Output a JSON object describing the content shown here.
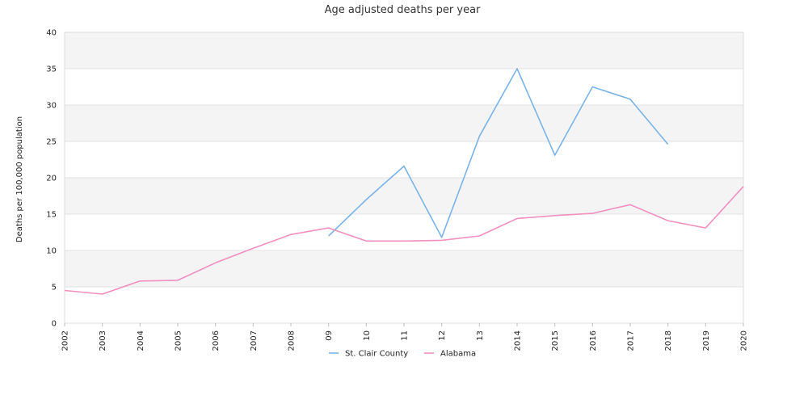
{
  "chart_data": {
    "type": "line",
    "title": "Age adjusted deaths per year",
    "ylabel": "Deaths per 100,000 population",
    "xlabel": "",
    "ylim": [
      0,
      40
    ],
    "yticks": [
      0,
      5,
      10,
      15,
      20,
      25,
      30,
      35,
      40
    ],
    "grid": true,
    "legend_position": "bottom-center",
    "categories": [
      "2002",
      "2003",
      "2004",
      "2005",
      "2006",
      "2007",
      "2008",
      "09",
      "10",
      "11",
      "12",
      "13",
      "2014",
      "2015",
      "2016",
      "2017",
      "2018",
      "2019",
      "2020"
    ],
    "series": [
      {
        "name": "St. Clair County",
        "color": "#7ab3e8",
        "values": [
          null,
          null,
          null,
          null,
          null,
          null,
          null,
          12.0,
          17.0,
          21.6,
          11.8,
          25.7,
          35.0,
          23.1,
          32.5,
          30.8,
          24.6,
          null,
          null
        ]
      },
      {
        "name": "Alabama",
        "color": "#f08fc0",
        "values": [
          4.5,
          4.0,
          5.8,
          5.9,
          8.3,
          10.3,
          12.2,
          13.1,
          11.3,
          11.3,
          11.4,
          12.0,
          14.4,
          14.8,
          15.1,
          16.3,
          14.1,
          13.1,
          18.8
        ]
      }
    ]
  }
}
